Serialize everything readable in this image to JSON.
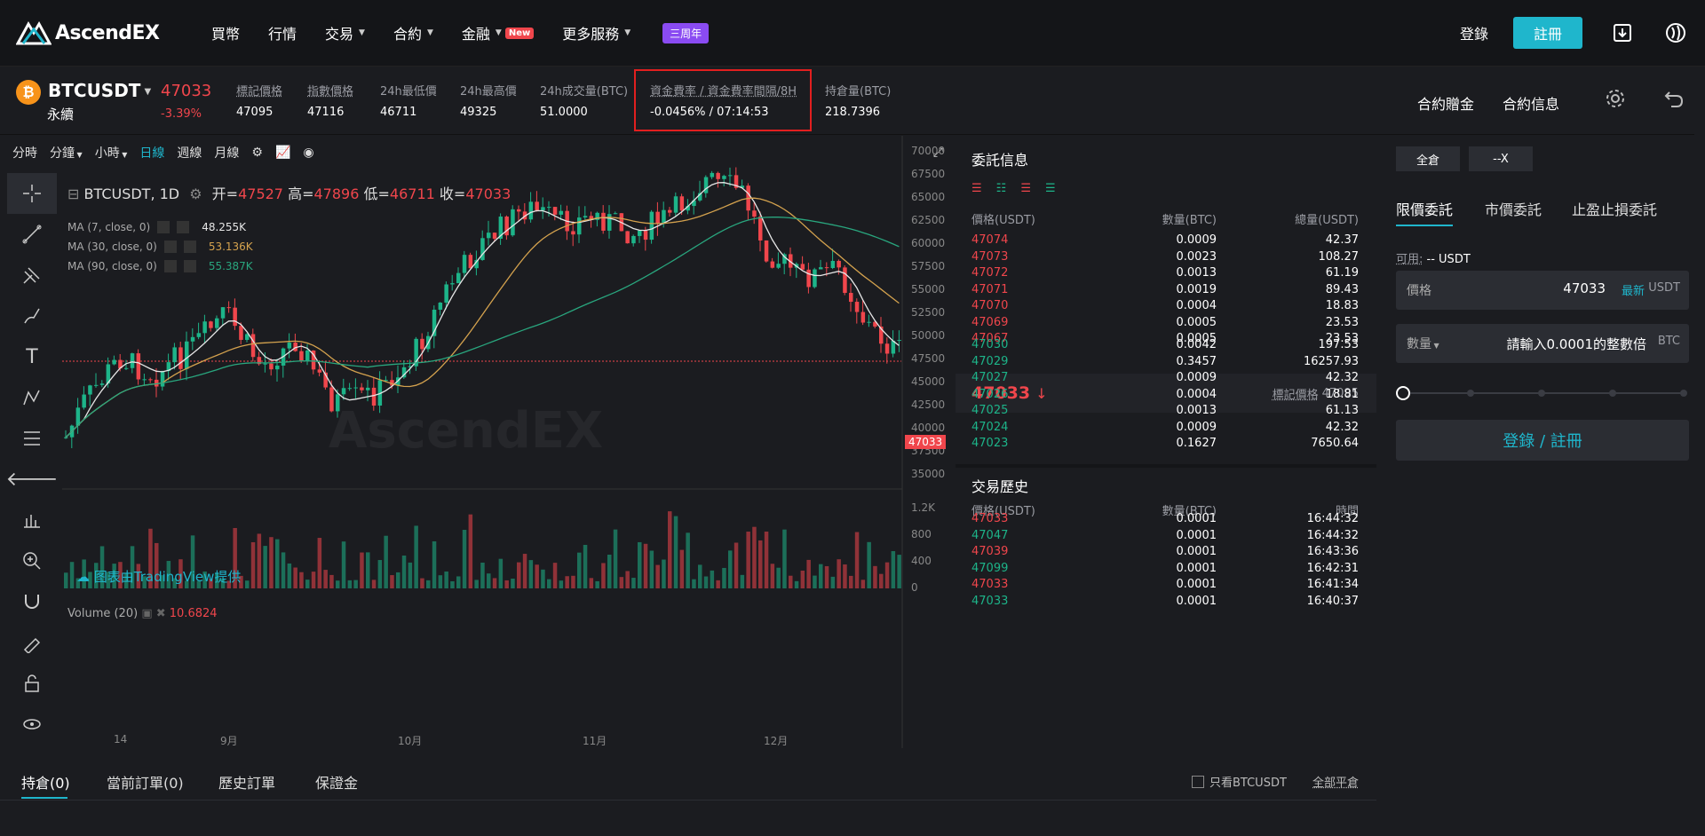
{
  "brand": {
    "name": "AscendEX"
  },
  "nav": {
    "items": [
      {
        "label": "買幣",
        "caret": false
      },
      {
        "label": "行情",
        "caret": false
      },
      {
        "label": "交易",
        "caret": true
      },
      {
        "label": "合約",
        "caret": true
      },
      {
        "label": "金融",
        "caret": true,
        "badge": "New"
      },
      {
        "label": "更多服務",
        "caret": true
      }
    ],
    "anniversary": "三周年",
    "login": "登錄",
    "register": "註冊"
  },
  "ticker": {
    "symbol": "BTCUSDT",
    "symbol_sub": "永續",
    "last_price": "47033",
    "change": "-3.39%",
    "stats": [
      {
        "label": "標記價格",
        "value": "47095"
      },
      {
        "label": "指數價格",
        "value": "47116"
      },
      {
        "label": "24h最低價",
        "value": "46711"
      },
      {
        "label": "24h最高價",
        "value": "49325"
      },
      {
        "label": "24h成交量(BTC)",
        "value": "51.0000"
      },
      {
        "label": "資金費率 / 資金費率間隔/8H",
        "value": "-0.0456% / 07:14:53"
      },
      {
        "label": "持倉量(BTC)",
        "value": "218.7396"
      }
    ],
    "links": [
      "合約贈金",
      "合約信息"
    ]
  },
  "chart_toolbar": {
    "items": [
      "分時",
      "分鐘",
      "小時",
      "日線",
      "週線",
      "月線"
    ],
    "active": "日線"
  },
  "chart_legend": {
    "title": "BTCUSDT, 1D",
    "open_label": "开=",
    "open": "47527",
    "high_label": "高=",
    "high": "47896",
    "low_label": "低=",
    "low": "46711",
    "close_label": "收=",
    "close": "47033",
    "ma": [
      {
        "label": "MA (7, close, 0)",
        "value": "48.255K",
        "color": "#e6e6e6"
      },
      {
        "label": "MA (30, close, 0)",
        "value": "53.136K",
        "color": "#d4a24e"
      },
      {
        "label": "MA (90, close, 0)",
        "value": "55.387K",
        "color": "#29a67e"
      }
    ],
    "tv_credit": "图表由TradingView提供",
    "volume_label": "Volume (20)",
    "volume_value": "10.6824",
    "watermark": "AscendEX"
  },
  "chart_data": {
    "type": "candlestick",
    "y_ticks": [
      "70000",
      "67500",
      "65000",
      "62500",
      "60000",
      "57500",
      "55000",
      "52500",
      "50000",
      "47500",
      "45000",
      "42500",
      "40000",
      "37500",
      "35000"
    ],
    "vol_ticks": [
      "1.2K",
      "800",
      "400",
      "0"
    ],
    "x_ticks": [
      "14",
      "9月",
      "10月",
      "11月",
      "12月"
    ],
    "last_price_tag": "47033"
  },
  "orderbook": {
    "title": "委託信息",
    "headers": [
      "價格(USDT)",
      "數量(BTC)",
      "總量(USDT)"
    ],
    "asks": [
      [
        "47074",
        "0.0009",
        "42.37"
      ],
      [
        "47073",
        "0.0023",
        "108.27"
      ],
      [
        "47072",
        "0.0013",
        "61.19"
      ],
      [
        "47071",
        "0.0019",
        "89.43"
      ],
      [
        "47070",
        "0.0004",
        "18.83"
      ],
      [
        "47069",
        "0.0005",
        "23.53"
      ],
      [
        "47067",
        "0.0005",
        "23.53"
      ]
    ],
    "mid_price": "47033",
    "mark_label": "標記價格",
    "mark_value": "47095",
    "bids": [
      [
        "47030",
        "0.0042",
        "197.53"
      ],
      [
        "47029",
        "0.3457",
        "16257.93"
      ],
      [
        "47027",
        "0.0009",
        "42.32"
      ],
      [
        "47026",
        "0.0004",
        "18.81"
      ],
      [
        "47025",
        "0.0013",
        "61.13"
      ],
      [
        "47024",
        "0.0009",
        "42.32"
      ],
      [
        "47023",
        "0.1627",
        "7650.64"
      ]
    ]
  },
  "trades": {
    "title": "交易歷史",
    "headers": [
      "價格(USDT)",
      "數量(BTC)",
      "時間"
    ],
    "rows": [
      {
        "price": "47033",
        "qty": "0.0001",
        "time": "16:44:32",
        "side": "dn"
      },
      {
        "price": "47047",
        "qty": "0.0001",
        "time": "16:44:32",
        "side": "up"
      },
      {
        "price": "47039",
        "qty": "0.0001",
        "time": "16:43:36",
        "side": "dn"
      },
      {
        "price": "47099",
        "qty": "0.0001",
        "time": "16:42:31",
        "side": "up"
      },
      {
        "price": "47033",
        "qty": "0.0001",
        "time": "16:41:34",
        "side": "dn"
      },
      {
        "price": "47033",
        "qty": "0.0001",
        "time": "16:40:37",
        "side": "up"
      }
    ]
  },
  "order_form": {
    "margin_mode": "全倉",
    "leverage": "--X",
    "tabs": [
      "限價委託",
      "市價委託",
      "止盈止損委託"
    ],
    "available_label": "可用:",
    "available_value": "-- USDT",
    "price_label": "價格",
    "price_value": "47033",
    "latest": "最新",
    "price_unit": "USDT",
    "qty_label": "數量",
    "qty_placeholder": "請輸入0.0001的整數倍",
    "qty_unit": "BTC",
    "login_button": "登錄 / 註冊"
  },
  "bottom": {
    "tabs": [
      "持倉(0)",
      "當前訂單(0)",
      "歷史訂單",
      "保證金"
    ],
    "only_symbol": "只看BTCUSDT",
    "close_all": "全部平倉"
  }
}
